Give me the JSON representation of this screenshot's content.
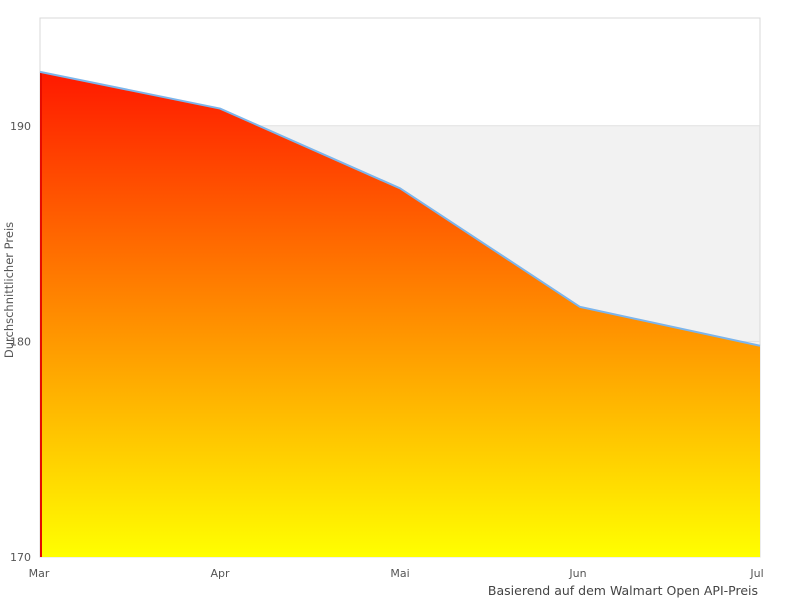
{
  "chart_data": {
    "type": "area",
    "title": "",
    "xlabel": "",
    "ylabel": "Durchschnittlicher Preis",
    "categories": [
      "Mar",
      "Apr",
      "Mai",
      "Jun",
      "Jul"
    ],
    "series": [
      {
        "name": "Durchschnittlicher Preis",
        "values": [
          192.5,
          190.8,
          187.1,
          181.6,
          179.8
        ]
      }
    ],
    "values": [
      192.5,
      190.8,
      187.1,
      181.6,
      179.8
    ],
    "yticks": [
      170,
      180,
      190
    ],
    "ytick_labels": [
      "170",
      "180",
      "190"
    ],
    "ylim": [
      170,
      195
    ],
    "grid": "horizontal-190-visible",
    "legend": "none",
    "caption": "Basierend auf dem Walmart Open API-Preis",
    "band": {
      "from": 170,
      "to": 190,
      "color": "#f2f2f2"
    },
    "colors": {
      "area_gradient_top": "#ff0000",
      "area_gradient_bottom": "#ffff00",
      "line": "#7cb5ec",
      "area_left_edge": "#e40c00",
      "band": "#f2f2f2",
      "gridline": "#e0e0e0",
      "plot_border": "#d8d8d8",
      "tick_text": "#555555",
      "caption_text": "#444444",
      "background": "#ffffff"
    }
  }
}
